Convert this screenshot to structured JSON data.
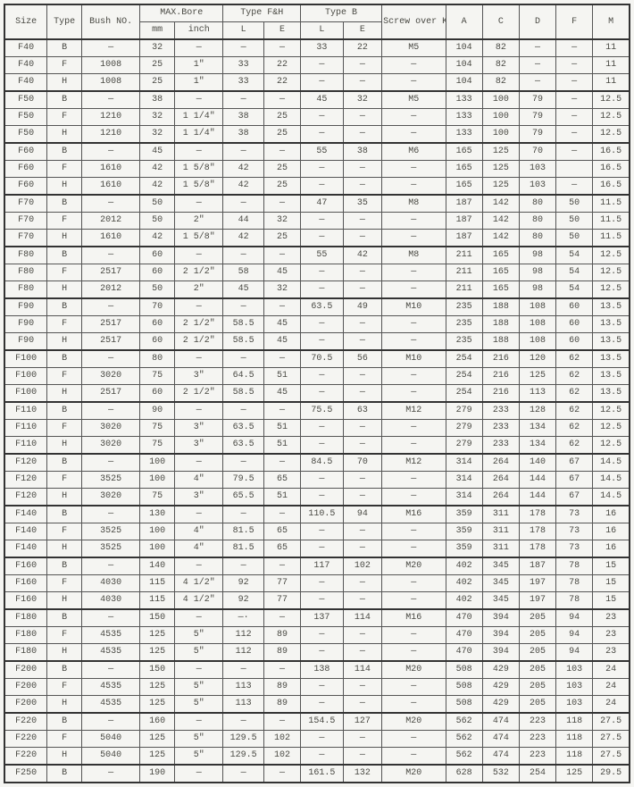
{
  "headers": {
    "size": "Size",
    "type": "Type",
    "bush": "Bush NO.",
    "maxbore": "MAX.Bore",
    "mm": "mm",
    "inch": "inch",
    "fh": "Type F&H",
    "b": "Type B",
    "l": "L",
    "e": "E",
    "screw": "Screw over Key",
    "a": "A",
    "c": "C",
    "d": "D",
    "f": "F",
    "m": "M"
  },
  "rows": [
    [
      "F40",
      "B",
      "—",
      "32",
      "—",
      "—",
      "—",
      "33",
      "22",
      "M5",
      "104",
      "82",
      "—",
      "—",
      "11",
      true
    ],
    [
      "F40",
      "F",
      "1008",
      "25",
      "1″",
      "33",
      "22",
      "—",
      "—",
      "—",
      "104",
      "82",
      "—",
      "—",
      "11",
      false
    ],
    [
      "F40",
      "H",
      "1008",
      "25",
      "1″",
      "33",
      "22",
      "—",
      "—",
      "—",
      "104",
      "82",
      "—",
      "—",
      "11",
      false
    ],
    [
      "F50",
      "B",
      "—",
      "38",
      "—",
      "—",
      "—",
      "45",
      "32",
      "M5",
      "133",
      "100",
      "79",
      "—",
      "12.5",
      true
    ],
    [
      "F50",
      "F",
      "1210",
      "32",
      "1 1/4″",
      "38",
      "25",
      "—",
      "—",
      "—",
      "133",
      "100",
      "79",
      "—",
      "12.5",
      false
    ],
    [
      "F50",
      "H",
      "1210",
      "32",
      "1 1/4″",
      "38",
      "25",
      "—",
      "—",
      "—",
      "133",
      "100",
      "79",
      "—",
      "12.5",
      false
    ],
    [
      "F60",
      "B",
      "—",
      "45",
      "—",
      "—",
      "—",
      "55",
      "38",
      "M6",
      "165",
      "125",
      "70",
      "—",
      "16.5",
      true
    ],
    [
      "F60",
      "F",
      "1610",
      "42",
      "1 5/8″",
      "42",
      "25",
      "—",
      "—",
      "—",
      "165",
      "125",
      "103",
      "",
      "16.5",
      false
    ],
    [
      "F60",
      "H",
      "1610",
      "42",
      "1 5/8″",
      "42",
      "25",
      "—",
      "—",
      "—",
      "165",
      "125",
      "103",
      "—",
      "16.5",
      false
    ],
    [
      "F70",
      "B",
      "—",
      "50",
      "—",
      "—",
      "—",
      "47",
      "35",
      "M8",
      "187",
      "142",
      "80",
      "50",
      "11.5",
      true
    ],
    [
      "F70",
      "F",
      "2012",
      "50",
      "2″",
      "44",
      "32",
      "—",
      "—",
      "—",
      "187",
      "142",
      "80",
      "50",
      "11.5",
      false
    ],
    [
      "F70",
      "H",
      "1610",
      "42",
      "1 5/8″",
      "42",
      "25",
      "—",
      "—",
      "—",
      "187",
      "142",
      "80",
      "50",
      "11.5",
      false
    ],
    [
      "F80",
      "B",
      "—",
      "60",
      "—",
      "—",
      "—",
      "55",
      "42",
      "M8",
      "211",
      "165",
      "98",
      "54",
      "12.5",
      true
    ],
    [
      "F80",
      "F",
      "2517",
      "60",
      "2 1/2″",
      "58",
      "45",
      "—",
      "—",
      "—",
      "211",
      "165",
      "98",
      "54",
      "12.5",
      false
    ],
    [
      "F80",
      "H",
      "2012",
      "50",
      "2″",
      "45",
      "32",
      "—",
      "—",
      "—",
      "211",
      "165",
      "98",
      "54",
      "12.5",
      false
    ],
    [
      "F90",
      "B",
      "—",
      "70",
      "—",
      "—",
      "—",
      "63.5",
      "49",
      "M10",
      "235",
      "188",
      "108",
      "60",
      "13.5",
      true
    ],
    [
      "F90",
      "F",
      "2517",
      "60",
      "2 1/2″",
      "58.5",
      "45",
      "—",
      "—",
      "—",
      "235",
      "188",
      "108",
      "60",
      "13.5",
      false
    ],
    [
      "F90",
      "H",
      "2517",
      "60",
      "2 1/2″",
      "58.5",
      "45",
      "—",
      "—",
      "—",
      "235",
      "188",
      "108",
      "60",
      "13.5",
      false
    ],
    [
      "F100",
      "B",
      "—",
      "80",
      "—",
      "—",
      "—",
      "70.5",
      "56",
      "M10",
      "254",
      "216",
      "120",
      "62",
      "13.5",
      true
    ],
    [
      "F100",
      "F",
      "3020",
      "75",
      "3″",
      "64.5",
      "51",
      "—",
      "—",
      "—",
      "254",
      "216",
      "125",
      "62",
      "13.5",
      false
    ],
    [
      "F100",
      "H",
      "2517",
      "60",
      "2 1/2″",
      "58.5",
      "45",
      "—",
      "—",
      "—",
      "254",
      "216",
      "113",
      "62",
      "13.5",
      false
    ],
    [
      "F110",
      "B",
      "—",
      "90",
      "—",
      "—",
      "—",
      "75.5",
      "63",
      "M12",
      "279",
      "233",
      "128",
      "62",
      "12.5",
      true
    ],
    [
      "F110",
      "F",
      "3020",
      "75",
      "3″",
      "63.5",
      "51",
      "—",
      "—",
      "—",
      "279",
      "233",
      "134",
      "62",
      "12.5",
      false
    ],
    [
      "F110",
      "H",
      "3020",
      "75",
      "3″",
      "63.5",
      "51",
      "—",
      "—",
      "—",
      "279",
      "233",
      "134",
      "62",
      "12.5",
      false
    ],
    [
      "F120",
      "B",
      "—",
      "100",
      "—",
      "—",
      "—",
      "84.5",
      "70",
      "M12",
      "314",
      "264",
      "140",
      "67",
      "14.5",
      true
    ],
    [
      "F120",
      "F",
      "3525",
      "100",
      "4″",
      "79.5",
      "65",
      "—",
      "—",
      "—",
      "314",
      "264",
      "144",
      "67",
      "14.5",
      false
    ],
    [
      "F120",
      "H",
      "3020",
      "75",
      "3″",
      "65.5",
      "51",
      "—",
      "—",
      "—",
      "314",
      "264",
      "144",
      "67",
      "14.5",
      false
    ],
    [
      "F140",
      "B",
      "—",
      "130",
      "—",
      "—",
      "—",
      "110.5",
      "94",
      "M16",
      "359",
      "311",
      "178",
      "73",
      "16",
      true
    ],
    [
      "F140",
      "F",
      "3525",
      "100",
      "4″",
      "81.5",
      "65",
      "—",
      "—",
      "—",
      "359",
      "311",
      "178",
      "73",
      "16",
      false
    ],
    [
      "F140",
      "H",
      "3525",
      "100",
      "4″",
      "81.5",
      "65",
      "—",
      "—",
      "—",
      "359",
      "311",
      "178",
      "73",
      "16",
      false
    ],
    [
      "F160",
      "B",
      "—",
      "140",
      "—",
      "—",
      "—",
      "117",
      "102",
      "M20",
      "402",
      "345",
      "187",
      "78",
      "15",
      true
    ],
    [
      "F160",
      "F",
      "4030",
      "115",
      "4 1/2″",
      "92",
      "77",
      "—",
      "—",
      "—",
      "402",
      "345",
      "197",
      "78",
      "15",
      false
    ],
    [
      "F160",
      "H",
      "4030",
      "115",
      "4 1/2″",
      "92",
      "77",
      "—",
      "—",
      "—",
      "402",
      "345",
      "197",
      "78",
      "15",
      false
    ],
    [
      "F180",
      "B",
      "—",
      "150",
      "—",
      "—·",
      "—",
      "137",
      "114",
      "M16",
      "470",
      "394",
      "205",
      "94",
      "23",
      true
    ],
    [
      "F180",
      "F",
      "4535",
      "125",
      "5″",
      "112",
      "89",
      "—",
      "—",
      "—",
      "470",
      "394",
      "205",
      "94",
      "23",
      false
    ],
    [
      "F180",
      "H",
      "4535",
      "125",
      "5″",
      "112",
      "89",
      "—",
      "—",
      "—",
      "470",
      "394",
      "205",
      "94",
      "23",
      false
    ],
    [
      "F200",
      "B",
      "—",
      "150",
      "—",
      "—",
      "—",
      "138",
      "114",
      "M20",
      "508",
      "429",
      "205",
      "103",
      "24",
      true
    ],
    [
      "F200",
      "F",
      "4535",
      "125",
      "5″",
      "113",
      "89",
      "—",
      "—",
      "—",
      "508",
      "429",
      "205",
      "103",
      "24",
      false
    ],
    [
      "F200",
      "H",
      "4535",
      "125",
      "5″",
      "113",
      "89",
      "—",
      "—",
      "—",
      "508",
      "429",
      "205",
      "103",
      "24",
      false
    ],
    [
      "F220",
      "B",
      "—",
      "160",
      "—",
      "—",
      "—",
      "154.5",
      "127",
      "M20",
      "562",
      "474",
      "223",
      "118",
      "27.5",
      true
    ],
    [
      "F220",
      "F",
      "5040",
      "125",
      "5″",
      "129.5",
      "102",
      "—",
      "—",
      "—",
      "562",
      "474",
      "223",
      "118",
      "27.5",
      false
    ],
    [
      "F220",
      "H",
      "5040",
      "125",
      "5″",
      "129.5",
      "102",
      "—",
      "—",
      "—",
      "562",
      "474",
      "223",
      "118",
      "27.5",
      false
    ],
    [
      "F250",
      "B",
      "—",
      "190",
      "—",
      "—",
      "—",
      "161.5",
      "132",
      "M20",
      "628",
      "532",
      "254",
      "125",
      "29.5",
      true
    ]
  ]
}
